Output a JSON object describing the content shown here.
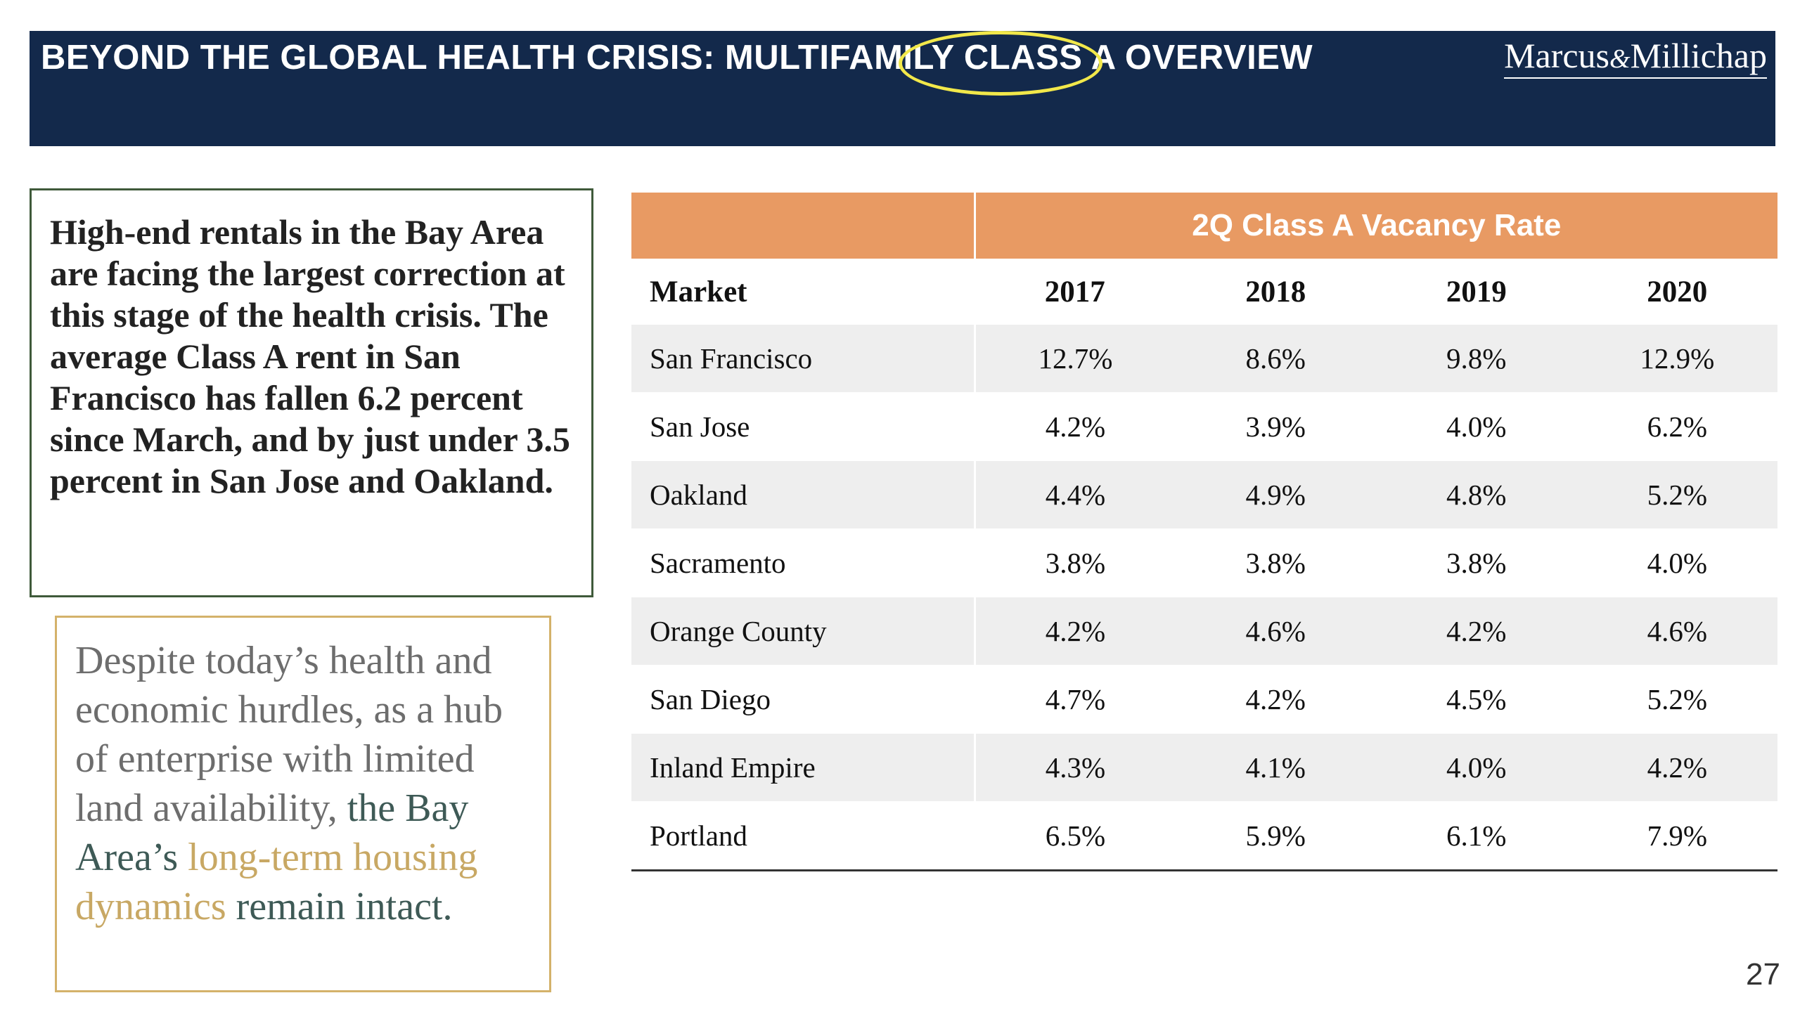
{
  "header": {
    "title": "BEYOND THE GLOBAL HEALTH CRISIS: MULTIFAMILY CLASS A OVERVIEW",
    "logo_part1": "Marcus",
    "logo_amp": "&",
    "logo_part2": "Millichap",
    "highlight_color": "#f2e84a",
    "background_color": "#13294b"
  },
  "callout": {
    "text": " High-end rentals in the Bay Area are facing the largest correction at this stage of the health crisis. The average Class A rent in San Francisco has fallen 6.2 percent since March, and by just under 3.5 percent in San Jose and Oakland."
  },
  "quote": {
    "part1": "Despite today’s health and economic hurdles, as a hub of enterprise with limited land availability, ",
    "part2": "the Bay Area’s ",
    "part3": "long-term housing dynamics",
    "part4": " remain intact."
  },
  "table": {
    "group_header": "2Q Class A Vacancy Rate",
    "columns": [
      "Market",
      "2017",
      "2018",
      "2019",
      "2020"
    ],
    "rows": [
      [
        "San Francisco",
        "12.7%",
        "8.6%",
        "9.8%",
        "12.9%"
      ],
      [
        "San Jose",
        "4.2%",
        "3.9%",
        "4.0%",
        "6.2%"
      ],
      [
        "Oakland",
        "4.4%",
        "4.9%",
        "4.8%",
        "5.2%"
      ],
      [
        "Sacramento",
        "3.8%",
        "3.8%",
        "3.8%",
        "4.0%"
      ],
      [
        "Orange County",
        "4.2%",
        "4.6%",
        "4.2%",
        "4.6%"
      ],
      [
        "San Diego",
        "4.7%",
        "4.2%",
        "4.5%",
        "5.2%"
      ],
      [
        "Inland Empire",
        "4.3%",
        "4.1%",
        "4.0%",
        "4.2%"
      ],
      [
        "Portland",
        "6.5%",
        "5.9%",
        "6.1%",
        "7.9%"
      ]
    ],
    "header_color": "#e89a63"
  },
  "page_number": "27"
}
